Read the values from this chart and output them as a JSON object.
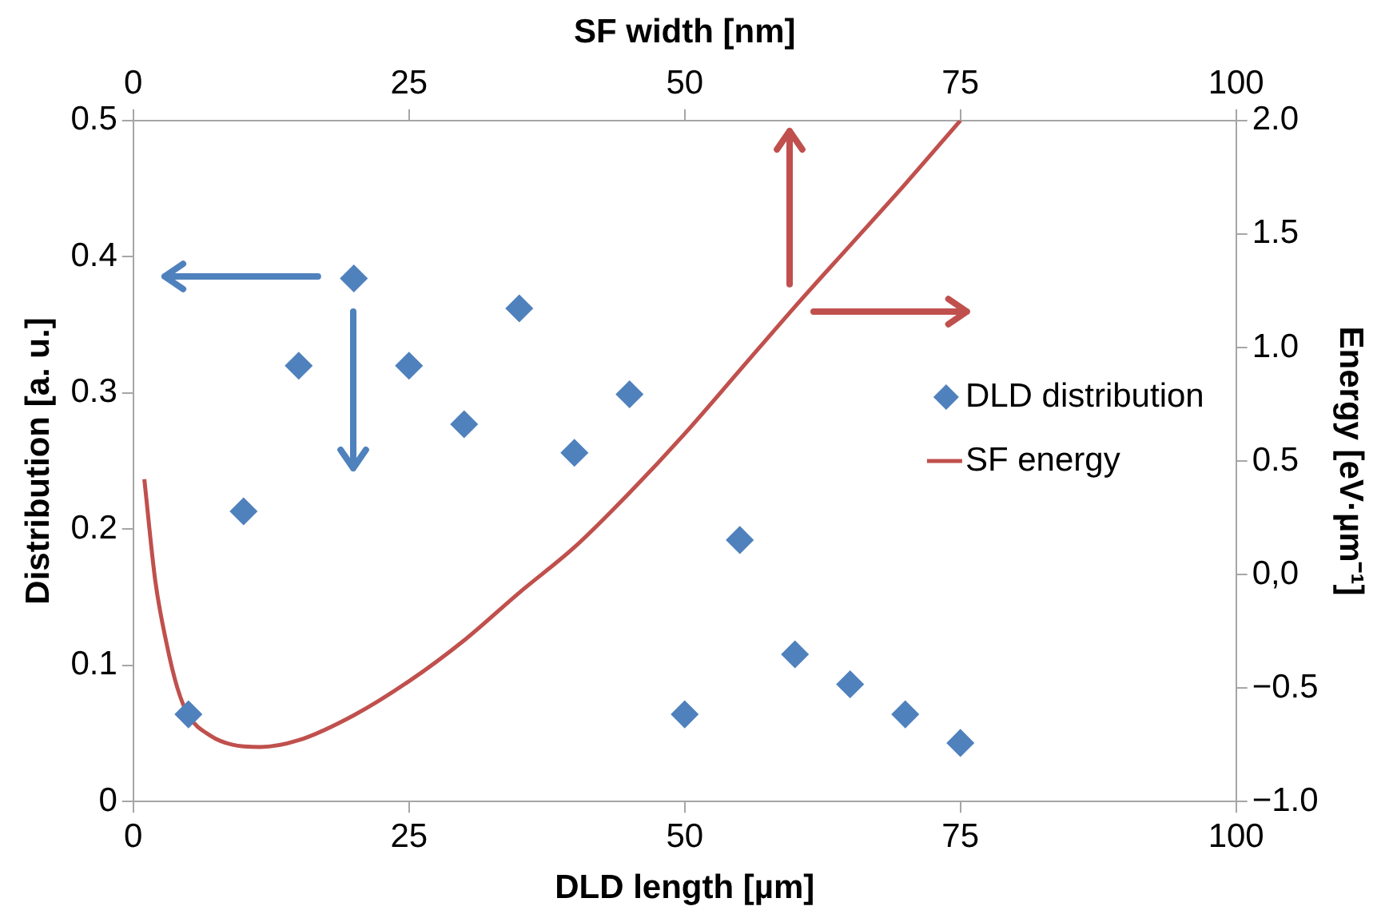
{
  "chart_data": {
    "type": "scatter",
    "xlabel": "DLD length [µm]",
    "ylabel": "Distribution [a. u.]",
    "y2label": "Energy [eV·µm⁻¹]",
    "x2label": "SF width [nm]",
    "xlim": [
      0,
      100
    ],
    "xticks": [
      0,
      25,
      50,
      75,
      100
    ],
    "x2lim": [
      0,
      100
    ],
    "x2ticks": [
      0,
      25,
      50,
      75,
      100
    ],
    "ylim": [
      0,
      0.5
    ],
    "yticks": [
      0,
      0.1,
      0.2,
      0.3,
      0.4,
      0.5
    ],
    "y2lim": [
      -1,
      2
    ],
    "y2ticks": [
      {
        "value": -1,
        "label": "−1.0"
      },
      {
        "value": -0.5,
        "label": "−0.5"
      },
      {
        "value": 0,
        "label": "0,0"
      },
      {
        "value": 0.5,
        "label": "0.5"
      },
      {
        "value": 1,
        "label": "1.0"
      },
      {
        "value": 1.5,
        "label": "1.5"
      },
      {
        "value": 2,
        "label": "2.0"
      }
    ],
    "grid": false,
    "legend": "right",
    "series": [
      {
        "name": "DLD distribution",
        "marker": "diamond",
        "color": "#4f81bd",
        "x": [
          5,
          10,
          15,
          20,
          25,
          30,
          35,
          40,
          45,
          50,
          55,
          60,
          65,
          70,
          75
        ],
        "values": [
          0.064,
          0.213,
          0.32,
          0.384,
          0.32,
          0.277,
          0.362,
          0.256,
          0.299,
          0.064,
          0.192,
          0.108,
          0.086,
          0.064,
          0.043
        ]
      },
      {
        "name": "SF energy",
        "type": "line",
        "marker": "none",
        "line_style": "solid",
        "axis": "y2",
        "color": "#c0504d",
        "x": [
          1,
          2,
          3,
          4,
          5,
          7,
          9,
          11.5,
          15,
          20,
          25,
          30,
          35,
          40,
          45,
          50,
          55,
          60,
          65,
          70,
          75
        ],
        "values": [
          0.42,
          -0.03,
          -0.3,
          -0.5,
          -0.62,
          -0.71,
          -0.75,
          -0.76,
          -0.73,
          -0.62,
          -0.47,
          -0.29,
          -0.08,
          0.12,
          0.36,
          0.62,
          0.9,
          1.18,
          1.45,
          1.72,
          2.0
        ]
      }
    ]
  }
}
